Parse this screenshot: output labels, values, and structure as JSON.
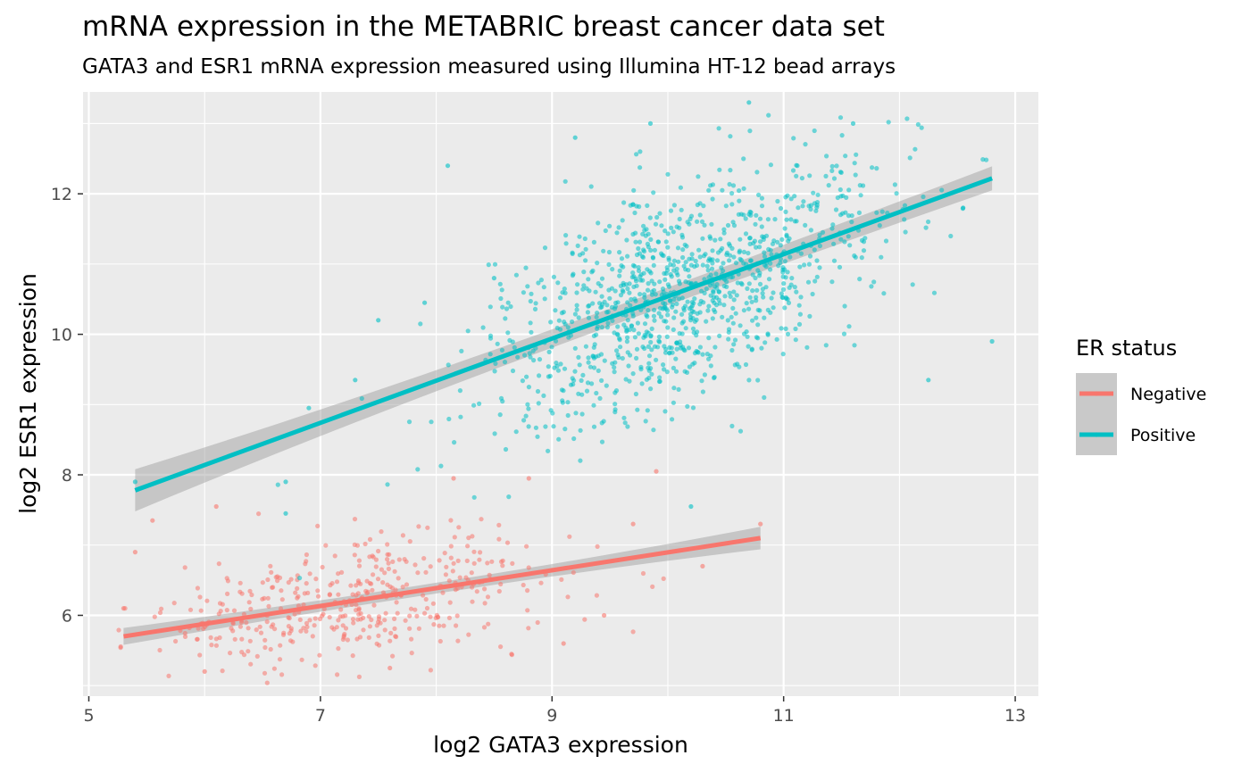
{
  "chart_data": {
    "type": "scatter",
    "title": "mRNA expression in the METABRIC breast cancer data set",
    "subtitle": "GATA3 and ESR1 mRNA expression measured using Illumina HT-12 bead arrays",
    "xlabel": "log2 GATA3 expression",
    "ylabel": "log2 ESR1 expression",
    "xlim": [
      4.95,
      13.2
    ],
    "ylim": [
      4.85,
      13.45
    ],
    "x_ticks": [
      5,
      7,
      9,
      11,
      13
    ],
    "y_ticks": [
      6,
      8,
      10,
      12
    ],
    "grid": true,
    "legend": {
      "title": "ER status",
      "position": "right"
    },
    "series": [
      {
        "name": "Negative",
        "color": "#F8766D",
        "count": 420,
        "x_center": 7.3,
        "x_sd": 0.95,
        "x_range": [
          5.25,
          10.8
        ],
        "fit": {
          "x": [
            5.3,
            10.8
          ],
          "y": [
            5.7,
            7.1
          ]
        },
        "y_sd": 0.45,
        "ci_half_width": [
          0.12,
          0.16
        ],
        "highlight_points": [
          {
            "x": 5.3,
            "y": 6.1
          },
          {
            "x": 5.4,
            "y": 6.9
          },
          {
            "x": 5.55,
            "y": 7.35
          },
          {
            "x": 6.1,
            "y": 7.55
          },
          {
            "x": 6.0,
            "y": 5.2
          },
          {
            "x": 7.6,
            "y": 5.25
          },
          {
            "x": 8.15,
            "y": 7.95
          },
          {
            "x": 8.8,
            "y": 7.95
          },
          {
            "x": 9.45,
            "y": 6.0
          },
          {
            "x": 9.7,
            "y": 7.3
          },
          {
            "x": 9.9,
            "y": 8.05
          },
          {
            "x": 10.3,
            "y": 6.7
          },
          {
            "x": 10.8,
            "y": 7.3
          },
          {
            "x": 8.65,
            "y": 5.45
          },
          {
            "x": 9.1,
            "y": 5.6
          }
        ]
      },
      {
        "name": "Positive",
        "color": "#00BFC4",
        "count": 1100,
        "x_center": 10.15,
        "x_sd": 0.85,
        "x_range": [
          5.4,
          12.8
        ],
        "fit": {
          "x": [
            5.4,
            12.8
          ],
          "y": [
            7.78,
            12.22
          ]
        },
        "y_sd": 0.75,
        "ci_half_width": [
          0.3,
          0.17
        ],
        "highlight_points": [
          {
            "x": 5.4,
            "y": 7.9
          },
          {
            "x": 6.7,
            "y": 7.9
          },
          {
            "x": 6.7,
            "y": 7.45
          },
          {
            "x": 6.9,
            "y": 8.95
          },
          {
            "x": 7.3,
            "y": 9.35
          },
          {
            "x": 7.5,
            "y": 10.2
          },
          {
            "x": 8.1,
            "y": 12.4
          },
          {
            "x": 9.2,
            "y": 12.8
          },
          {
            "x": 9.85,
            "y": 13.0
          },
          {
            "x": 10.7,
            "y": 13.3
          },
          {
            "x": 11.6,
            "y": 13.0
          },
          {
            "x": 12.8,
            "y": 9.9
          },
          {
            "x": 12.55,
            "y": 11.8
          },
          {
            "x": 12.25,
            "y": 9.35
          },
          {
            "x": 10.2,
            "y": 7.55
          },
          {
            "x": 8.5,
            "y": 10.8
          },
          {
            "x": 7.9,
            "y": 10.45
          }
        ]
      }
    ]
  }
}
